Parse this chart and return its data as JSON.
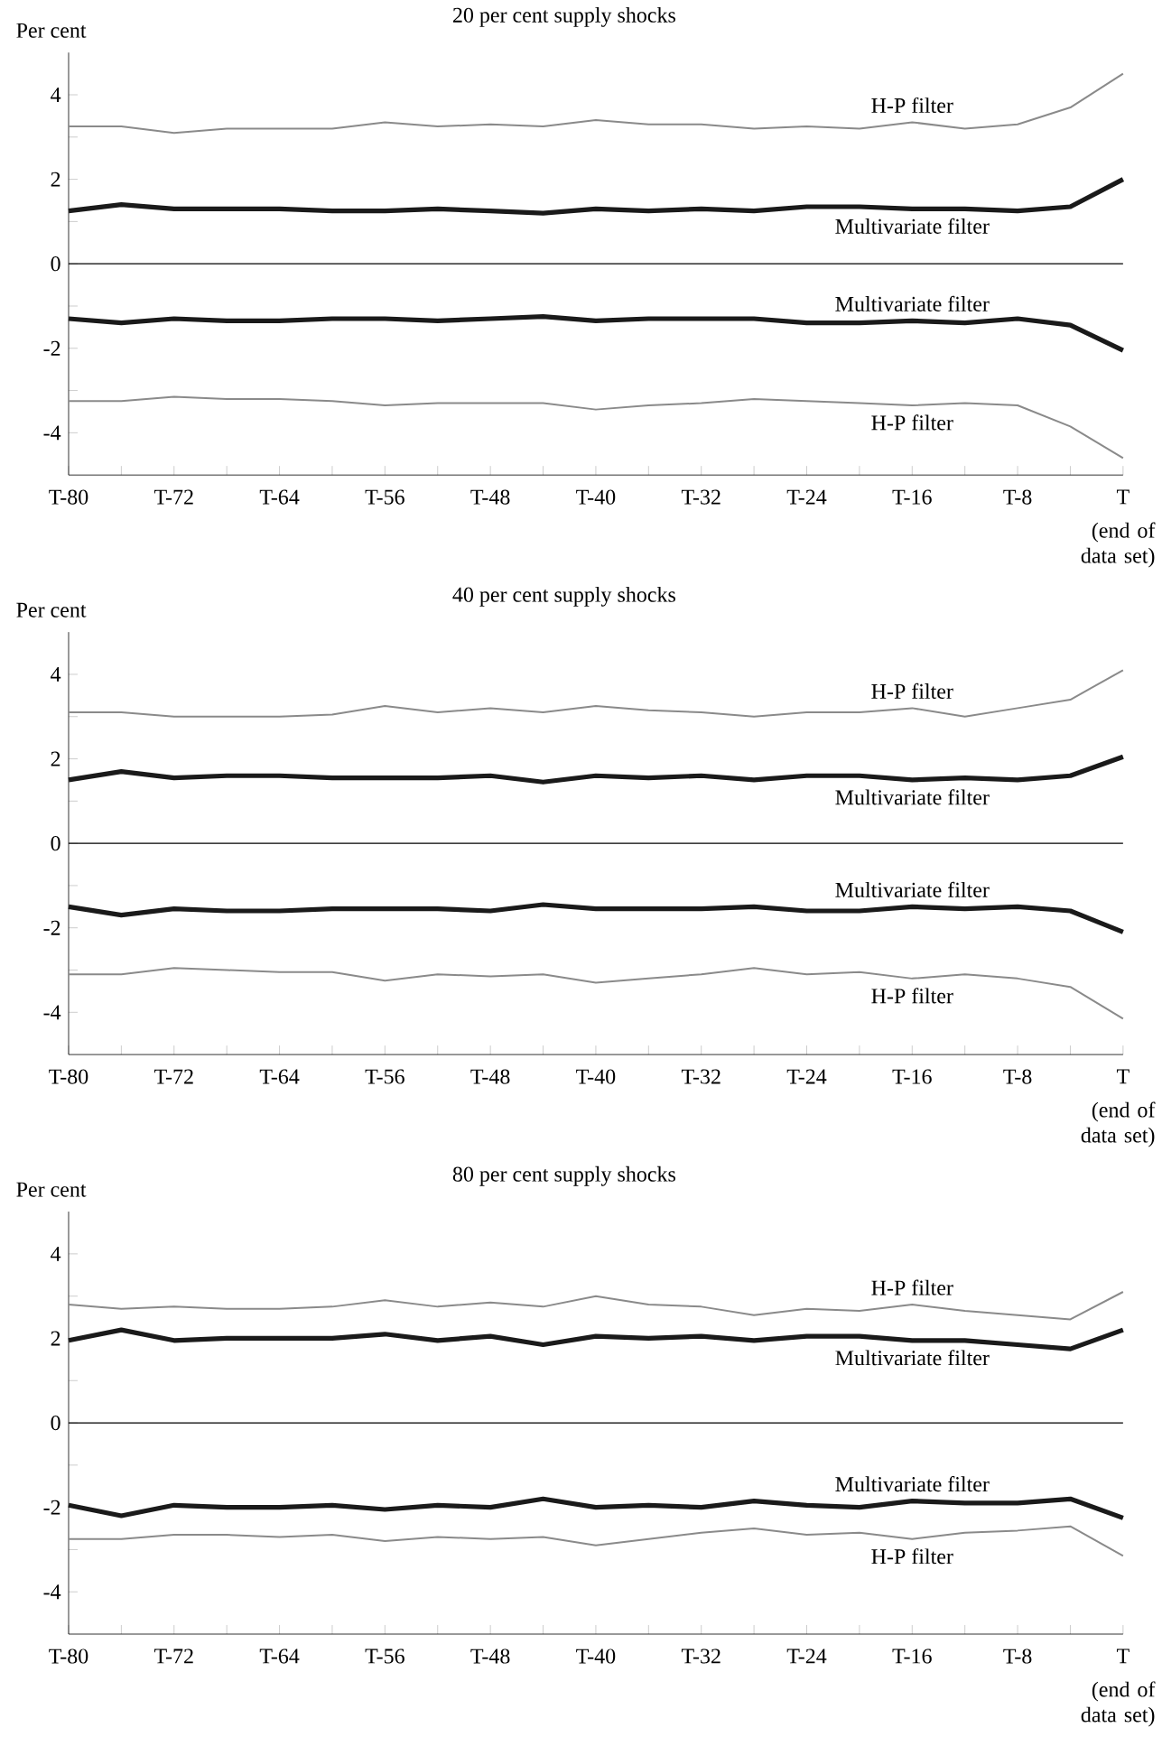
{
  "chart_data": [
    {
      "type": "line",
      "title": "20 per cent supply shocks",
      "ylabel": "Per cent",
      "annotations": [
        "(end of data set)"
      ],
      "categories": [
        "T-80",
        null,
        "T-72",
        null,
        "T-64",
        null,
        "T-56",
        null,
        "T-48",
        null,
        "T-40",
        null,
        "T-32",
        null,
        "T-24",
        null,
        "T-16",
        null,
        "T-8",
        null,
        "T"
      ],
      "ylim": [
        -5,
        5
      ],
      "yticks": [
        -4,
        {
          "value": -3,
          "label": null
        },
        -2,
        {
          "value": -1,
          "label": null
        },
        0,
        {
          "value": 1,
          "label": null
        },
        2,
        {
          "value": 3,
          "label": null
        },
        4
      ],
      "ref_lines": [
        {
          "axis": "y",
          "value": 0,
          "color": "#000000"
        }
      ],
      "series": [
        {
          "name": "H-P filter",
          "color": "#8a8a8a",
          "values": [
            3.25,
            3.25,
            3.1,
            3.2,
            3.2,
            3.2,
            3.35,
            3.25,
            3.3,
            3.25,
            3.4,
            3.3,
            3.3,
            3.2,
            3.25,
            3.2,
            3.35,
            3.2,
            3.3,
            3.7,
            4.5
          ]
        },
        {
          "name": "Multivariate filter",
          "color": "#1a1a1a",
          "values": [
            1.25,
            1.4,
            1.3,
            1.3,
            1.3,
            1.25,
            1.25,
            1.3,
            1.25,
            1.2,
            1.3,
            1.25,
            1.3,
            1.25,
            1.35,
            1.35,
            1.3,
            1.3,
            1.25,
            1.35,
            2.0
          ]
        },
        {
          "name": "Multivariate filter",
          "color": "#1a1a1a",
          "values": [
            -1.3,
            -1.4,
            -1.3,
            -1.35,
            -1.35,
            -1.3,
            -1.3,
            -1.35,
            -1.3,
            -1.25,
            -1.35,
            -1.3,
            -1.3,
            -1.3,
            -1.4,
            -1.4,
            -1.35,
            -1.4,
            -1.3,
            -1.45,
            -2.05
          ]
        },
        {
          "name": "H-P filter",
          "color": "#8a8a8a",
          "values": [
            -3.25,
            -3.25,
            -3.15,
            -3.2,
            -3.2,
            -3.25,
            -3.35,
            -3.3,
            -3.3,
            -3.3,
            -3.45,
            -3.35,
            -3.3,
            -3.2,
            -3.25,
            -3.3,
            -3.35,
            -3.3,
            -3.35,
            -3.85,
            -4.6
          ]
        }
      ]
    },
    {
      "type": "line",
      "title": "40 per cent supply shocks",
      "ylabel": "Per cent",
      "annotations": [
        "(end of data set)"
      ],
      "categories": [
        "T-80",
        null,
        "T-72",
        null,
        "T-64",
        null,
        "T-56",
        null,
        "T-48",
        null,
        "T-40",
        null,
        "T-32",
        null,
        "T-24",
        null,
        "T-16",
        null,
        "T-8",
        null,
        "T"
      ],
      "ylim": [
        -5,
        5
      ],
      "yticks": [
        -4,
        {
          "value": -3,
          "label": null
        },
        -2,
        {
          "value": -1,
          "label": null
        },
        0,
        {
          "value": 1,
          "label": null
        },
        2,
        {
          "value": 3,
          "label": null
        },
        4
      ],
      "ref_lines": [
        {
          "axis": "y",
          "value": 0,
          "color": "#000000"
        }
      ],
      "series": [
        {
          "name": "H-P filter",
          "color": "#8a8a8a",
          "values": [
            3.1,
            3.1,
            3.0,
            3.0,
            3.0,
            3.05,
            3.25,
            3.1,
            3.2,
            3.1,
            3.25,
            3.15,
            3.1,
            3.0,
            3.1,
            3.1,
            3.2,
            3.0,
            3.2,
            3.4,
            4.1
          ]
        },
        {
          "name": "Multivariate filter",
          "color": "#1a1a1a",
          "values": [
            1.5,
            1.7,
            1.55,
            1.6,
            1.6,
            1.55,
            1.55,
            1.55,
            1.6,
            1.45,
            1.6,
            1.55,
            1.6,
            1.5,
            1.6,
            1.6,
            1.5,
            1.55,
            1.5,
            1.6,
            2.05
          ]
        },
        {
          "name": "Multivariate filter",
          "color": "#1a1a1a",
          "values": [
            -1.5,
            -1.7,
            -1.55,
            -1.6,
            -1.6,
            -1.55,
            -1.55,
            -1.55,
            -1.6,
            -1.45,
            -1.55,
            -1.55,
            -1.55,
            -1.5,
            -1.6,
            -1.6,
            -1.5,
            -1.55,
            -1.5,
            -1.6,
            -2.1
          ]
        },
        {
          "name": "H-P filter",
          "color": "#8a8a8a",
          "values": [
            -3.1,
            -3.1,
            -2.95,
            -3.0,
            -3.05,
            -3.05,
            -3.25,
            -3.1,
            -3.15,
            -3.1,
            -3.3,
            -3.2,
            -3.1,
            -2.95,
            -3.1,
            -3.05,
            -3.2,
            -3.1,
            -3.2,
            -3.4,
            -4.15
          ]
        }
      ]
    },
    {
      "type": "line",
      "title": "80 per cent supply shocks",
      "ylabel": "Per cent",
      "annotations": [
        "(end of data set)"
      ],
      "categories": [
        "T-80",
        null,
        "T-72",
        null,
        "T-64",
        null,
        "T-56",
        null,
        "T-48",
        null,
        "T-40",
        null,
        "T-32",
        null,
        "T-24",
        null,
        "T-16",
        null,
        "T-8",
        null,
        "T"
      ],
      "ylim": [
        -5,
        5
      ],
      "yticks": [
        -4,
        {
          "value": -3,
          "label": null
        },
        -2,
        {
          "value": -1,
          "label": null
        },
        0,
        {
          "value": 1,
          "label": null
        },
        2,
        {
          "value": 3,
          "label": null
        },
        4
      ],
      "ref_lines": [
        {
          "axis": "y",
          "value": 0,
          "color": "#000000"
        }
      ],
      "series": [
        {
          "name": "H-P filter",
          "color": "#8a8a8a",
          "values": [
            2.8,
            2.7,
            2.75,
            2.7,
            2.7,
            2.75,
            2.9,
            2.75,
            2.85,
            2.75,
            3.0,
            2.8,
            2.75,
            2.55,
            2.7,
            2.65,
            2.8,
            2.65,
            2.55,
            2.45,
            3.1
          ]
        },
        {
          "name": "Multivariate filter",
          "color": "#1a1a1a",
          "values": [
            1.95,
            2.2,
            1.95,
            2.0,
            2.0,
            2.0,
            2.1,
            1.95,
            2.05,
            1.85,
            2.05,
            2.0,
            2.05,
            1.95,
            2.05,
            2.05,
            1.95,
            1.95,
            1.85,
            1.75,
            2.2
          ]
        },
        {
          "name": "Multivariate filter",
          "color": "#1a1a1a",
          "values": [
            -1.95,
            -2.2,
            -1.95,
            -2.0,
            -2.0,
            -1.95,
            -2.05,
            -1.95,
            -2.0,
            -1.8,
            -2.0,
            -1.95,
            -2.0,
            -1.85,
            -1.95,
            -2.0,
            -1.85,
            -1.9,
            -1.9,
            -1.8,
            -2.25
          ]
        },
        {
          "name": "H-P filter",
          "color": "#8a8a8a",
          "values": [
            -2.75,
            -2.75,
            -2.65,
            -2.65,
            -2.7,
            -2.65,
            -2.8,
            -2.7,
            -2.75,
            -2.7,
            -2.9,
            -2.75,
            -2.6,
            -2.5,
            -2.65,
            -2.6,
            -2.75,
            -2.6,
            -2.55,
            -2.45,
            -3.15
          ]
        }
      ]
    }
  ]
}
